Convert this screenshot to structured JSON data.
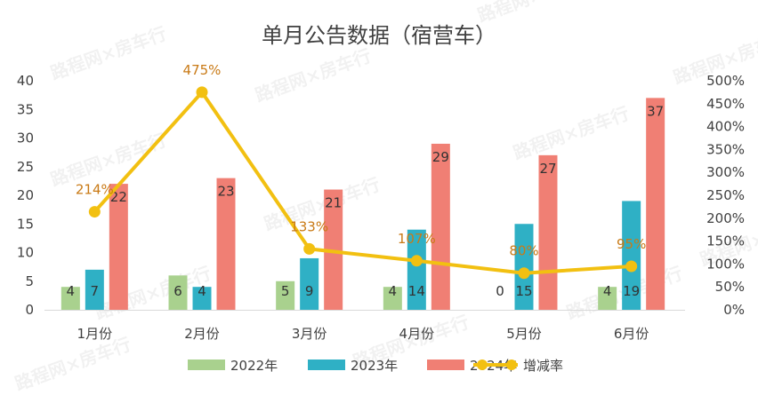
{
  "chart_data": {
    "type": "bar",
    "title": "单月公告数据（宿营车）",
    "categories": [
      "1月份",
      "2月份",
      "3月份",
      "4月份",
      "5月份",
      "6月份"
    ],
    "series": [
      {
        "name": "2022年",
        "color": "#a9d18e",
        "values": [
          4,
          6,
          5,
          4,
          0,
          4
        ]
      },
      {
        "name": "2023年",
        "color": "#2fb0c5",
        "values": [
          7,
          4,
          9,
          14,
          15,
          19
        ]
      },
      {
        "name": "2024年",
        "color": "#f07f74",
        "values": [
          22,
          23,
          21,
          29,
          27,
          37
        ]
      }
    ],
    "line_series": {
      "name": "增减率",
      "type": "line",
      "axis": "right",
      "color": "#f2c011",
      "values": [
        214,
        475,
        133,
        107,
        80,
        95
      ],
      "value_labels": [
        "214%",
        "475%",
        "133%",
        "107%",
        "80%",
        "95%"
      ]
    },
    "y_left": {
      "range": [
        0,
        40
      ],
      "ticks": [
        "0",
        "5",
        "10",
        "15",
        "20",
        "25",
        "30",
        "35",
        "40"
      ]
    },
    "y_right": {
      "range": [
        0,
        500
      ],
      "ticks": [
        "0%",
        "50%",
        "100%",
        "150%",
        "200%",
        "250%",
        "300%",
        "350%",
        "400%",
        "450%",
        "500%"
      ]
    },
    "grid": false,
    "legend_position": "bottom"
  },
  "watermark": "路程网×房车行"
}
